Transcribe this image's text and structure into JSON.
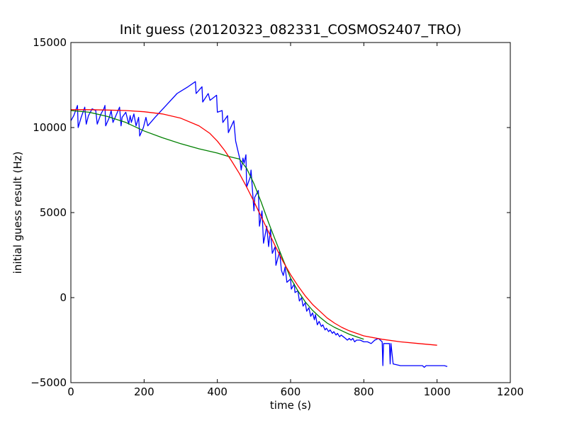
{
  "chart_data": {
    "type": "line",
    "title": "Init guess (20120323_082331_COSMOS2407_TRO)",
    "xlabel": "time (s)",
    "ylabel": "initial guess result (Hz)",
    "xlim": [
      0,
      1200
    ],
    "ylim": [
      -5000,
      15000
    ],
    "xticks": [
      "0",
      "200",
      "400",
      "600",
      "800",
      "1000",
      "1200"
    ],
    "yticks": [
      "−5000",
      "0",
      "5000",
      "10000",
      "15000"
    ],
    "xtick_values": [
      0,
      200,
      400,
      600,
      800,
      1000,
      1200
    ],
    "ytick_values": [
      -5000,
      0,
      5000,
      10000,
      15000
    ],
    "grid": false,
    "legend": null,
    "series": [
      {
        "color": "#0000ff",
        "x": [
          0,
          8,
          18,
          20,
          28,
          38,
          42,
          48,
          58,
          68,
          72,
          82,
          90,
          93,
          95,
          105,
          110,
          115,
          125,
          133,
          137,
          140,
          150,
          158,
          162,
          165,
          172,
          178,
          185,
          188,
          198,
          205,
          210,
          230,
          260,
          290,
          320,
          340,
          342,
          358,
          360,
          375,
          380,
          398,
          400,
          413,
          415,
          428,
          430,
          445,
          450,
          462,
          465,
          470,
          473,
          478,
          480,
          490,
          492,
          500,
          502,
          512,
          515,
          522,
          526,
          535,
          540,
          545,
          550,
          558,
          560,
          570,
          575,
          580,
          585,
          590,
          600,
          602,
          610,
          612,
          620,
          624,
          630,
          634,
          640,
          644,
          650,
          655,
          660,
          665,
          668,
          673,
          678,
          684,
          688,
          694,
          698,
          704,
          708,
          714,
          718,
          724,
          728,
          734,
          738,
          744,
          750,
          755,
          760,
          765,
          770,
          775,
          780,
          790,
          800,
          810,
          820,
          830,
          840,
          850,
          852,
          854,
          860,
          866,
          870,
          872,
          874,
          880,
          900,
          930,
          950,
          960,
          965,
          970,
          980,
          1000,
          1020,
          1028
        ],
        "y": [
          10400,
          10700,
          11300,
          10000,
          10600,
          11200,
          10200,
          10700,
          11100,
          11000,
          10200,
          10800,
          11100,
          11300,
          10100,
          10600,
          11000,
          10300,
          10800,
          11200,
          10100,
          10600,
          10900,
          10200,
          10700,
          10300,
          10800,
          10100,
          10600,
          9500,
          10000,
          10600,
          10100,
          10600,
          11300,
          12000,
          12400,
          12700,
          12000,
          12400,
          11500,
          12000,
          11600,
          11900,
          10900,
          11000,
          10300,
          10700,
          9700,
          10400,
          9200,
          8100,
          7500,
          8200,
          7900,
          8400,
          6500,
          7100,
          7500,
          5100,
          5900,
          6300,
          4200,
          5100,
          3200,
          4200,
          3000,
          4000,
          2600,
          3000,
          1900,
          2700,
          1600,
          1300,
          1800,
          900,
          1100,
          500,
          800,
          300,
          400,
          -200,
          0,
          -500,
          -300,
          -800,
          -600,
          -1100,
          -900,
          -1300,
          -1000,
          -1600,
          -1400,
          -1700,
          -1600,
          -1900,
          -1800,
          -2000,
          -1900,
          -2100,
          -2000,
          -2200,
          -2100,
          -2300,
          -2200,
          -2300,
          -2400,
          -2500,
          -2400,
          -2500,
          -2400,
          -2600,
          -2500,
          -2500,
          -2600,
          -2600,
          -2700,
          -2500,
          -2400,
          -2600,
          -4000,
          -2700,
          -2700,
          -2700,
          -2700,
          -3900,
          -2700,
          -3900,
          -4000,
          -4000,
          -4000,
          -4000,
          -4100,
          -4000,
          -4000,
          -4000,
          -4000,
          -4050
        ]
      },
      {
        "color": "#008000",
        "x": [
          0,
          50,
          100,
          150,
          200,
          250,
          300,
          350,
          400,
          430,
          460,
          480,
          500,
          520,
          540,
          560,
          580,
          600,
          620,
          640,
          660,
          680,
          700,
          720,
          740,
          760,
          780,
          800
        ],
        "y": [
          11000,
          10900,
          10650,
          10300,
          9800,
          9400,
          9050,
          8750,
          8500,
          8300,
          8150,
          7600,
          6700,
          5600,
          4400,
          3300,
          2200,
          1150,
          400,
          -250,
          -750,
          -1150,
          -1500,
          -1750,
          -1950,
          -2150,
          -2300,
          -2450
        ]
      },
      {
        "color": "#ff0000",
        "x": [
          0,
          50,
          100,
          150,
          200,
          250,
          300,
          350,
          380,
          400,
          420,
          440,
          460,
          480,
          500,
          520,
          540,
          560,
          580,
          600,
          620,
          640,
          660,
          680,
          700,
          720,
          740,
          760,
          780,
          800,
          850,
          900,
          950,
          1000
        ],
        "y": [
          11050,
          11050,
          11030,
          11000,
          10930,
          10800,
          10550,
          10100,
          9650,
          9200,
          8650,
          8000,
          7300,
          6500,
          5650,
          4750,
          3850,
          2950,
          2100,
          1350,
          700,
          100,
          -400,
          -800,
          -1200,
          -1500,
          -1750,
          -1950,
          -2100,
          -2250,
          -2450,
          -2600,
          -2700,
          -2800
        ]
      }
    ]
  }
}
